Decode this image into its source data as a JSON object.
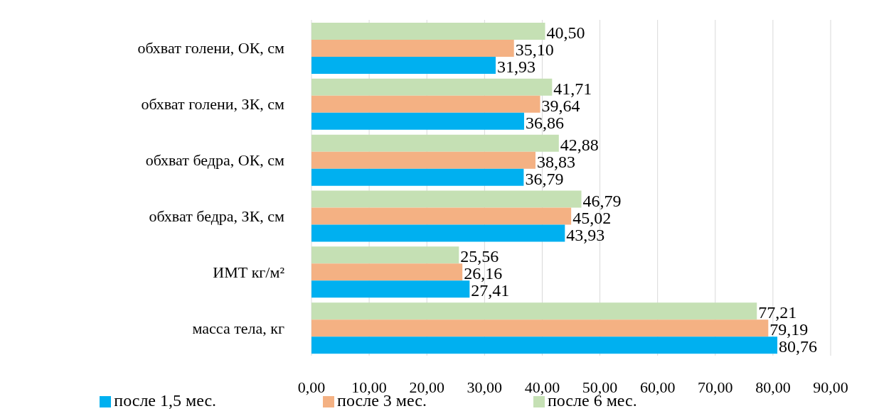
{
  "chart_data": {
    "type": "bar",
    "orientation": "horizontal",
    "categories": [
      "обхват голени, ОК, см",
      "обхват голени, ЗК, см",
      "обхват бедра, ОК, см",
      "обхват бедра, ЗК, см",
      "ИМТ кг/м²",
      "масса тела, кг"
    ],
    "series": [
      {
        "name": "после 6 мес.",
        "color": "#c5e0b4",
        "values": [
          40.5,
          41.71,
          42.88,
          46.79,
          25.56,
          77.21
        ],
        "value_labels": [
          "40,50",
          "41,71",
          "42,88",
          "46,79",
          "25,56",
          "77,21"
        ]
      },
      {
        "name": "после 3 мес.",
        "color": "#f4b183",
        "values": [
          35.1,
          39.64,
          38.83,
          45.02,
          26.16,
          79.19
        ],
        "value_labels": [
          "35,10",
          "39,64",
          "38,83",
          "45,02",
          "26,16",
          "79,19"
        ]
      },
      {
        "name": "после 1,5 мес.",
        "color": "#00b0f0",
        "values": [
          31.93,
          36.86,
          36.79,
          43.93,
          27.41,
          80.76
        ],
        "value_labels": [
          "31,93",
          "36,86",
          "36,79",
          "43,93",
          "27,41",
          "80,76"
        ]
      }
    ],
    "xlim": [
      0,
      90
    ],
    "xticks": [
      {
        "value": 0,
        "label": "0,00"
      },
      {
        "value": 10,
        "label": "10,00"
      },
      {
        "value": 20,
        "label": "20,00"
      },
      {
        "value": 30,
        "label": "30,00"
      },
      {
        "value": 40,
        "label": "40,00"
      },
      {
        "value": 50,
        "label": "50,00"
      },
      {
        "value": 60,
        "label": "60,00"
      },
      {
        "value": 70,
        "label": "70,00"
      },
      {
        "value": 80,
        "label": "80,00"
      },
      {
        "value": 90,
        "label": "90,00"
      }
    ],
    "grid": "x",
    "legend": "bottom"
  }
}
